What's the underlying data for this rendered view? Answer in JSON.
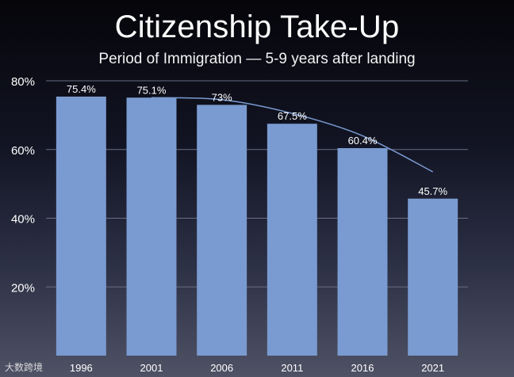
{
  "chart_data": {
    "type": "bar",
    "title": "Citizenship Take-Up",
    "subtitle": "Period of Immigration — 5-9 years after landing",
    "categories": [
      "1996",
      "2001",
      "2006",
      "2011",
      "2016",
      "2021"
    ],
    "values": [
      75.4,
      75.1,
      73,
      67.5,
      60.4,
      45.7
    ],
    "data_labels": [
      "75.4%",
      "75.1%",
      "73%",
      "67.5%",
      "60.4%",
      "45.7%"
    ],
    "ylim": [
      0,
      80
    ],
    "yticks": [
      {
        "value": 20,
        "label": "20%"
      },
      {
        "value": 40,
        "label": "40%"
      },
      {
        "value": 60,
        "label": "60%"
      },
      {
        "value": 80,
        "label": "80%"
      }
    ],
    "trendline": {
      "x": [
        "2001",
        "2006",
        "2011",
        "2016",
        "2021"
      ],
      "y": [
        75.1,
        74.5,
        70.5,
        64,
        53.5
      ]
    },
    "grid": true,
    "colors": {
      "bar": "#7a9bd1",
      "trendline": "#7a9bd1",
      "grid": "#6a6f86"
    }
  },
  "watermark": "大数跨境"
}
